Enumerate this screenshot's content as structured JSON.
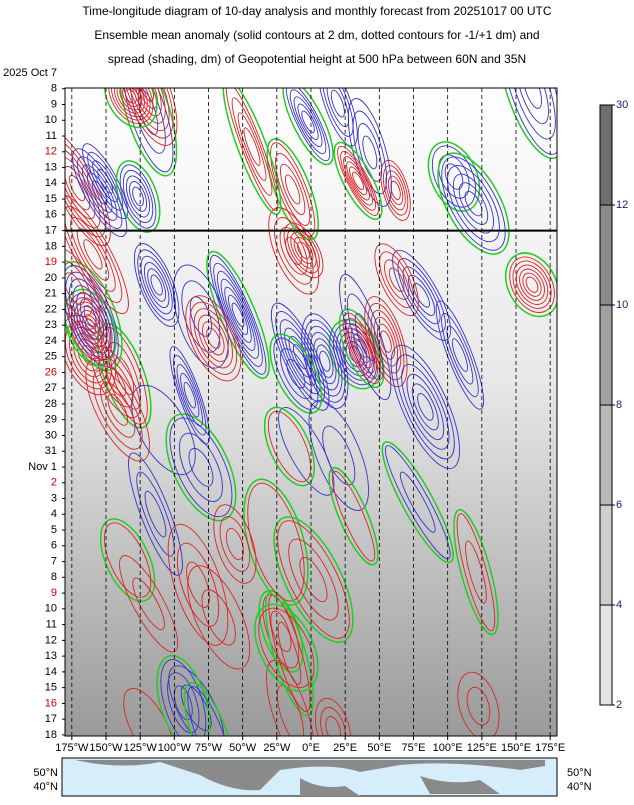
{
  "chart_data": {
    "type": "hovmoller",
    "title_lines": [
      "Time-longitude diagram of 10-day analysis and monthly forecast from 20251017 00 UTC",
      "Ensemble mean anomaly (solid contours at 2 dm, dotted contours for -1/+1 dm) and",
      "spread (shading, dm) of Geopotential height at 500 hPa between 60N and 35N"
    ],
    "y_labels": [
      {
        "label": "2025 Oct 7",
        "color": "#000000"
      },
      {
        "label": "8",
        "color": "#000000"
      },
      {
        "label": "9",
        "color": "#000000"
      },
      {
        "label": "10",
        "color": "#000000"
      },
      {
        "label": "11",
        "color": "#000000"
      },
      {
        "label": "12",
        "color": "#d00000"
      },
      {
        "label": "13",
        "color": "#000000"
      },
      {
        "label": "14",
        "color": "#000000"
      },
      {
        "label": "15",
        "color": "#000000"
      },
      {
        "label": "16",
        "color": "#000000"
      },
      {
        "label": "17",
        "color": "#000000"
      },
      {
        "label": "18",
        "color": "#000000"
      },
      {
        "label": "19",
        "color": "#d00000"
      },
      {
        "label": "20",
        "color": "#000000"
      },
      {
        "label": "21",
        "color": "#000000"
      },
      {
        "label": "22",
        "color": "#000000"
      },
      {
        "label": "23",
        "color": "#000000"
      },
      {
        "label": "24",
        "color": "#000000"
      },
      {
        "label": "25",
        "color": "#000000"
      },
      {
        "label": "26",
        "color": "#d00000"
      },
      {
        "label": "27",
        "color": "#000000"
      },
      {
        "label": "28",
        "color": "#000000"
      },
      {
        "label": "29",
        "color": "#000000"
      },
      {
        "label": "30",
        "color": "#000000"
      },
      {
        "label": "31",
        "color": "#000000"
      },
      {
        "label": "Nov 1",
        "color": "#000000"
      },
      {
        "label": "2",
        "color": "#d00000"
      },
      {
        "label": "3",
        "color": "#000000"
      },
      {
        "label": "4",
        "color": "#000000"
      },
      {
        "label": "5",
        "color": "#000000"
      },
      {
        "label": "6",
        "color": "#000000"
      },
      {
        "label": "7",
        "color": "#000000"
      },
      {
        "label": "8",
        "color": "#000000"
      },
      {
        "label": "9",
        "color": "#d00000"
      },
      {
        "label": "10",
        "color": "#000000"
      },
      {
        "label": "11",
        "color": "#000000"
      },
      {
        "label": "12",
        "color": "#000000"
      },
      {
        "label": "13",
        "color": "#000000"
      },
      {
        "label": "14",
        "color": "#000000"
      },
      {
        "label": "15",
        "color": "#000000"
      },
      {
        "label": "16",
        "color": "#d00000"
      },
      {
        "label": "17",
        "color": "#000000"
      },
      {
        "label": "18",
        "color": "#000000"
      }
    ],
    "xlim": [
      -180,
      180
    ],
    "xticks": [
      {
        "value": -175,
        "label": "175°W"
      },
      {
        "value": -150,
        "label": "150°W"
      },
      {
        "value": -125,
        "label": "125°W"
      },
      {
        "value": -100,
        "label": "100°W"
      },
      {
        "value": -75,
        "label": "75°W"
      },
      {
        "value": -50,
        "label": "50°W"
      },
      {
        "value": -25,
        "label": "25°W"
      },
      {
        "value": 0,
        "label": "0°E"
      },
      {
        "value": 25,
        "label": "25°E"
      },
      {
        "value": 50,
        "label": "50°E"
      },
      {
        "value": 75,
        "label": "75°E"
      },
      {
        "value": 100,
        "label": "100°E"
      },
      {
        "value": 125,
        "label": "125°E"
      },
      {
        "value": 150,
        "label": "150°E"
      },
      {
        "value": 175,
        "label": "175°E"
      }
    ],
    "grid": true,
    "colorbar": {
      "ticks": [
        30,
        12,
        10,
        8,
        6,
        4,
        2
      ],
      "label_color": "#1a1a6e",
      "colors": [
        "#6e6e6e",
        "#8a8a8a",
        "#a2a2a2",
        "#b9b9b9",
        "#cfcfcf",
        "#e4e4e4"
      ]
    },
    "map_labels": {
      "left": [
        "50°N",
        "40°N"
      ],
      "right": [
        "50°N",
        "40°N"
      ]
    }
  }
}
